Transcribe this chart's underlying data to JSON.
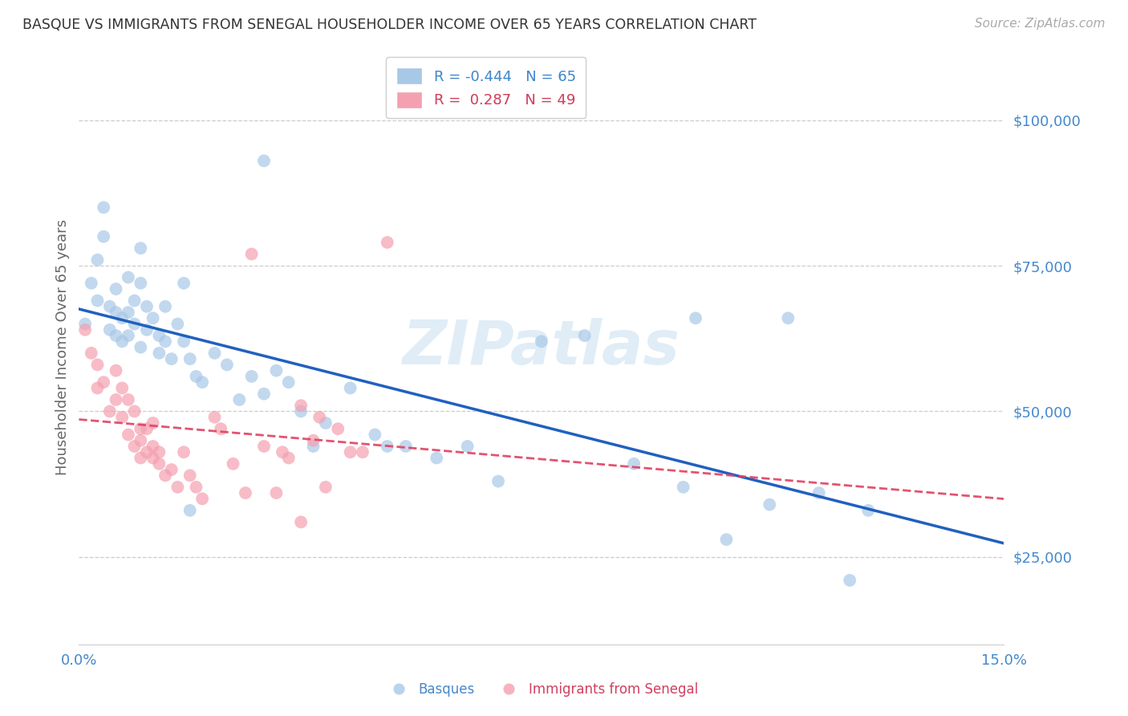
{
  "title": "BASQUE VS IMMIGRANTS FROM SENEGAL HOUSEHOLDER INCOME OVER 65 YEARS CORRELATION CHART",
  "source": "Source: ZipAtlas.com",
  "ylabel": "Householder Income Over 65 years",
  "ytick_labels": [
    "$25,000",
    "$50,000",
    "$75,000",
    "$100,000"
  ],
  "ytick_values": [
    25000,
    50000,
    75000,
    100000
  ],
  "xlim": [
    0.0,
    0.15
  ],
  "ylim": [
    10000,
    112000
  ],
  "blue_color": "#a8c8e8",
  "pink_color": "#f4a0b0",
  "blue_line_color": "#2060c0",
  "pink_line_color": "#e04060",
  "watermark": "ZIPatlas",
  "blue_R": -0.444,
  "blue_N": 65,
  "pink_R": 0.287,
  "pink_N": 49,
  "blue_points_x": [
    0.001,
    0.002,
    0.003,
    0.003,
    0.004,
    0.004,
    0.005,
    0.005,
    0.006,
    0.006,
    0.006,
    0.007,
    0.007,
    0.008,
    0.008,
    0.008,
    0.009,
    0.009,
    0.01,
    0.01,
    0.01,
    0.011,
    0.011,
    0.012,
    0.013,
    0.013,
    0.014,
    0.014,
    0.015,
    0.016,
    0.017,
    0.017,
    0.018,
    0.019,
    0.02,
    0.022,
    0.024,
    0.026,
    0.028,
    0.03,
    0.032,
    0.034,
    0.036,
    0.04,
    0.044,
    0.048,
    0.053,
    0.058,
    0.063,
    0.068,
    0.075,
    0.082,
    0.09,
    0.098,
    0.105,
    0.112,
    0.12,
    0.128,
    0.1,
    0.115,
    0.125,
    0.05,
    0.018,
    0.038,
    0.03
  ],
  "blue_points_y": [
    65000,
    72000,
    76000,
    69000,
    85000,
    80000,
    68000,
    64000,
    71000,
    67000,
    63000,
    66000,
    62000,
    73000,
    67000,
    63000,
    69000,
    65000,
    78000,
    72000,
    61000,
    68000,
    64000,
    66000,
    60000,
    63000,
    68000,
    62000,
    59000,
    65000,
    72000,
    62000,
    59000,
    56000,
    55000,
    60000,
    58000,
    52000,
    56000,
    53000,
    57000,
    55000,
    50000,
    48000,
    54000,
    46000,
    44000,
    42000,
    44000,
    38000,
    62000,
    63000,
    41000,
    37000,
    28000,
    34000,
    36000,
    33000,
    66000,
    66000,
    21000,
    44000,
    33000,
    44000,
    93000
  ],
  "pink_points_x": [
    0.001,
    0.002,
    0.003,
    0.003,
    0.004,
    0.005,
    0.006,
    0.006,
    0.007,
    0.007,
    0.008,
    0.008,
    0.009,
    0.009,
    0.01,
    0.01,
    0.011,
    0.011,
    0.012,
    0.012,
    0.013,
    0.013,
    0.014,
    0.015,
    0.016,
    0.017,
    0.018,
    0.019,
    0.02,
    0.022,
    0.023,
    0.025,
    0.027,
    0.03,
    0.033,
    0.036,
    0.039,
    0.042,
    0.046,
    0.05,
    0.028,
    0.032,
    0.038,
    0.044,
    0.01,
    0.012,
    0.034,
    0.04,
    0.036
  ],
  "pink_points_y": [
    64000,
    60000,
    54000,
    58000,
    55000,
    50000,
    57000,
    52000,
    54000,
    49000,
    46000,
    52000,
    50000,
    44000,
    47000,
    45000,
    47000,
    43000,
    42000,
    48000,
    41000,
    43000,
    39000,
    40000,
    37000,
    43000,
    39000,
    37000,
    35000,
    49000,
    47000,
    41000,
    36000,
    44000,
    43000,
    51000,
    49000,
    47000,
    43000,
    79000,
    77000,
    36000,
    45000,
    43000,
    42000,
    44000,
    42000,
    37000,
    31000
  ]
}
